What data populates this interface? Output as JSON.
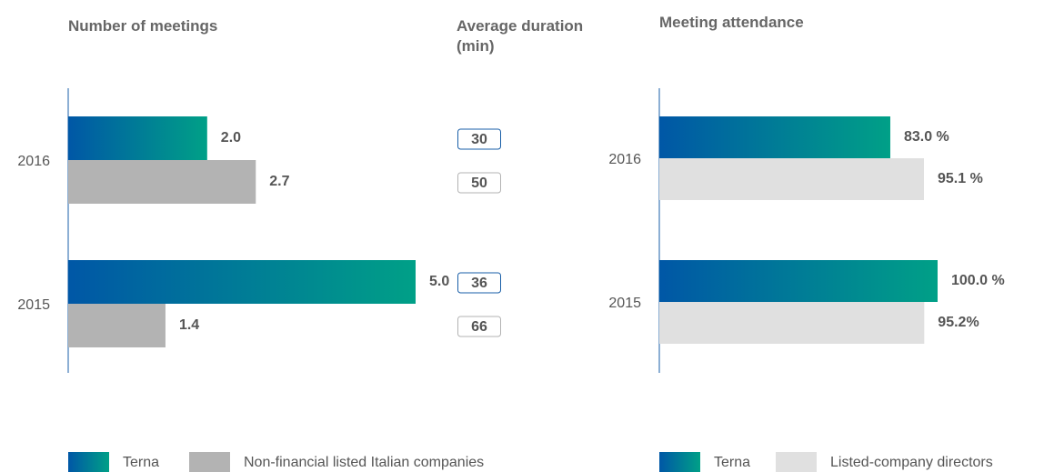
{
  "chart_data": [
    {
      "type": "bar",
      "title": "Number of meetings",
      "categories": [
        "2016",
        "2015"
      ],
      "series": [
        {
          "name": "Terna",
          "color": [
            "#0057a6",
            "#00a087"
          ],
          "values": [
            2.0,
            5.0
          ],
          "value_labels": [
            "2.0",
            "5.0"
          ]
        },
        {
          "name": "Non-financial listed Italian companies",
          "color": "#b3b3b3",
          "values": [
            2.7,
            1.4
          ],
          "value_labels": [
            "2.7",
            "1.4"
          ]
        }
      ]
    },
    {
      "type": "boxes",
      "title": "Average duration (min)",
      "categories": [
        "2016",
        "2015"
      ],
      "series": [
        {
          "color": "#1a5fa8",
          "values": [
            30,
            36
          ]
        },
        {
          "color": "#b3b3b3",
          "values": [
            50,
            66
          ]
        }
      ]
    },
    {
      "type": "bar",
      "title": "Meeting attendance",
      "categories": [
        "2016",
        "2015"
      ],
      "series": [
        {
          "name": "Terna",
          "color": [
            "#0057a6",
            "#00a087"
          ],
          "values": [
            83.0,
            100.0
          ],
          "value_labels": [
            "83.0 %",
            "100.0 %"
          ]
        },
        {
          "name": "Listed-company directors",
          "color": "#e0e0e0",
          "values": [
            95.1,
            95.2
          ],
          "value_labels": [
            "95.1 %",
            "95.2%"
          ]
        }
      ]
    }
  ]
}
